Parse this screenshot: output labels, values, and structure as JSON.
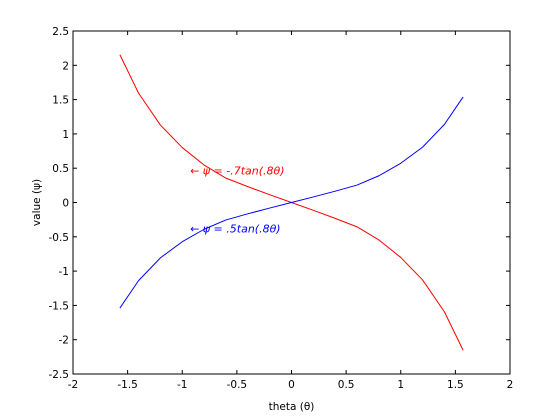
{
  "chart_data": {
    "type": "line",
    "xlabel": "theta (θ)",
    "ylabel": "value (ψ)",
    "xlim": [
      -2,
      2
    ],
    "ylim": [
      -2.5,
      2.5
    ],
    "xticks": [
      -2,
      -1.5,
      -1,
      -0.5,
      0,
      0.5,
      1,
      1.5,
      2
    ],
    "xtick_labels": [
      "-2",
      "-1.5",
      "-1",
      "-0.5",
      "0",
      "0.5",
      "1",
      "1.5",
      "2"
    ],
    "yticks": [
      -2.5,
      -2,
      -1.5,
      -1,
      -0.5,
      0,
      0.5,
      1,
      1.5,
      2,
      2.5
    ],
    "ytick_labels": [
      "-2.5",
      "-2",
      "-1.5",
      "-1",
      "-0.5",
      "0",
      "0.5",
      "1",
      "1.5",
      "2",
      "2.5"
    ],
    "grid": false,
    "box": true,
    "series": [
      {
        "color": "#ff0000",
        "x": [
          -1.5708,
          -1.4,
          -1.2,
          -1.0,
          -0.8,
          -0.6,
          -0.4,
          -0.2,
          0,
          0.2,
          0.4,
          0.6,
          0.8,
          1.0,
          1.2,
          1.4,
          1.5708
        ],
        "y": [
          2.154,
          1.594,
          1.129,
          0.801,
          0.546,
          0.355,
          0.231,
          0.114,
          0.0,
          -0.114,
          -0.231,
          -0.355,
          -0.546,
          -0.801,
          -1.129,
          -1.594,
          -2.154
        ]
      },
      {
        "color": "#0000ff",
        "x": [
          -1.5708,
          -1.4,
          -1.2,
          -1.0,
          -0.8,
          -0.6,
          -0.4,
          -0.2,
          0,
          0.2,
          0.4,
          0.6,
          0.8,
          1.0,
          1.2,
          1.4,
          1.5708
        ],
        "y": [
          -1.539,
          -1.139,
          -0.807,
          -0.572,
          -0.39,
          -0.254,
          -0.165,
          -0.081,
          0.0,
          0.081,
          0.165,
          0.254,
          0.39,
          0.572,
          0.807,
          1.139,
          1.539
        ]
      }
    ],
    "annotations": [
      {
        "text": "← ψ = -.7tan(.8θ)",
        "x": -0.8,
        "y": 0.47,
        "color": "#ff0000"
      },
      {
        "text": "← ψ = .5tan(.8θ)",
        "x": -0.8,
        "y": -0.38,
        "color": "#0000ff"
      }
    ]
  }
}
